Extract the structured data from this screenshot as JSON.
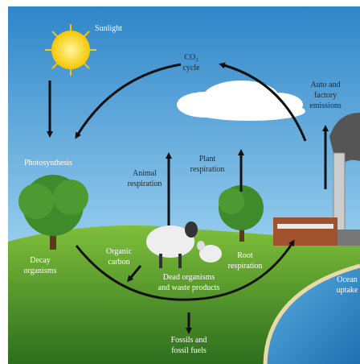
{
  "labels": [
    {
      "lines": [
        "Sunlight"
      ]
    },
    {
      "lines": [
        "CO₂",
        "cycle"
      ]
    },
    {
      "lines": [
        "Auto and",
        "factory",
        "emissions"
      ]
    },
    {
      "lines": [
        "Photosynthesis"
      ]
    },
    {
      "lines": [
        "Animal",
        "respiration"
      ]
    },
    {
      "lines": [
        "Plant",
        "respiration"
      ]
    },
    {
      "lines": [
        "Organic",
        "carbon"
      ]
    },
    {
      "lines": [
        "Root",
        "respiration"
      ]
    },
    {
      "lines": [
        "Decay",
        "organisms"
      ]
    },
    {
      "lines": [
        "Dead organisms",
        "and waste products"
      ]
    },
    {
      "lines": [
        "Ocean",
        "uptake"
      ]
    },
    {
      "lines": [
        "Fossils and",
        "fossil fuels"
      ]
    }
  ]
}
